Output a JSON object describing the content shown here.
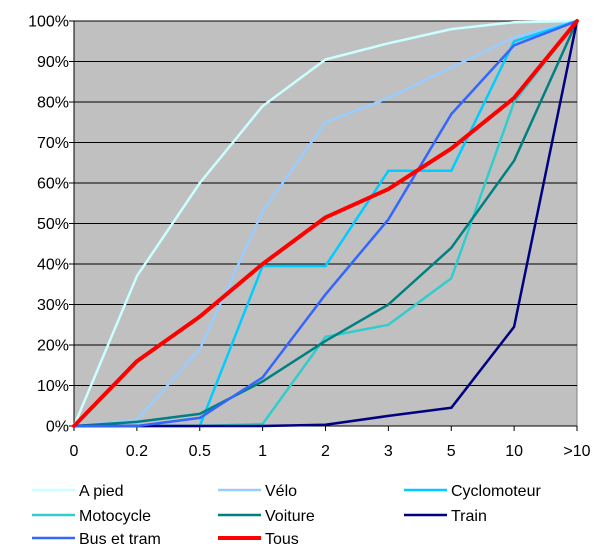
{
  "chart_data": {
    "type": "line",
    "title": "",
    "xlabel": "",
    "ylabel": "",
    "categories": [
      "0",
      "0.2",
      "0.5",
      "1",
      "2",
      "3",
      "5",
      "10",
      ">10"
    ],
    "y_tick_labels": [
      "0%",
      "10%",
      "20%",
      "30%",
      "40%",
      "50%",
      "60%",
      "70%",
      "80%",
      "90%",
      "100%"
    ],
    "ylim": [
      0,
      100
    ],
    "y_unit": "%",
    "grid": true,
    "plot_background": "#c0c0c0",
    "legend_position": "bottom",
    "series": [
      {
        "name": "A pied",
        "color": "#ccffff",
        "width": 2.5,
        "values": [
          0,
          37,
          60,
          79,
          90.5,
          94.5,
          98,
          99.7,
          100
        ]
      },
      {
        "name": "Vélo",
        "color": "#99ccff",
        "width": 2.5,
        "values": [
          0,
          1.5,
          19,
          53,
          75,
          81,
          88.5,
          96,
          100
        ]
      },
      {
        "name": "Cyclomoteur",
        "color": "#00ccff",
        "width": 2.5,
        "values": [
          0,
          0,
          0,
          39.5,
          39.5,
          63,
          63,
          95,
          100
        ]
      },
      {
        "name": "Motocycle",
        "color": "#33cccc",
        "width": 2.5,
        "values": [
          0,
          0,
          0,
          0.5,
          22,
          25,
          36.5,
          80,
          100
        ]
      },
      {
        "name": "Voiture",
        "color": "#008080",
        "width": 2.5,
        "values": [
          0,
          1,
          3,
          11,
          21,
          30,
          44,
          65.5,
          100
        ]
      },
      {
        "name": "Train",
        "color": "#000080",
        "width": 2.5,
        "values": [
          0,
          0,
          0,
          0,
          0.3,
          2.5,
          4.5,
          24.5,
          100
        ]
      },
      {
        "name": "Bus et tram",
        "color": "#3366ff",
        "width": 2.5,
        "values": [
          0,
          0,
          2,
          12,
          32.5,
          51,
          77,
          94,
          100
        ]
      },
      {
        "name": "Tous",
        "color": "#ff0000",
        "width": 4,
        "values": [
          0,
          16,
          27,
          40,
          51.5,
          58.5,
          68.5,
          81,
          100
        ]
      }
    ]
  }
}
